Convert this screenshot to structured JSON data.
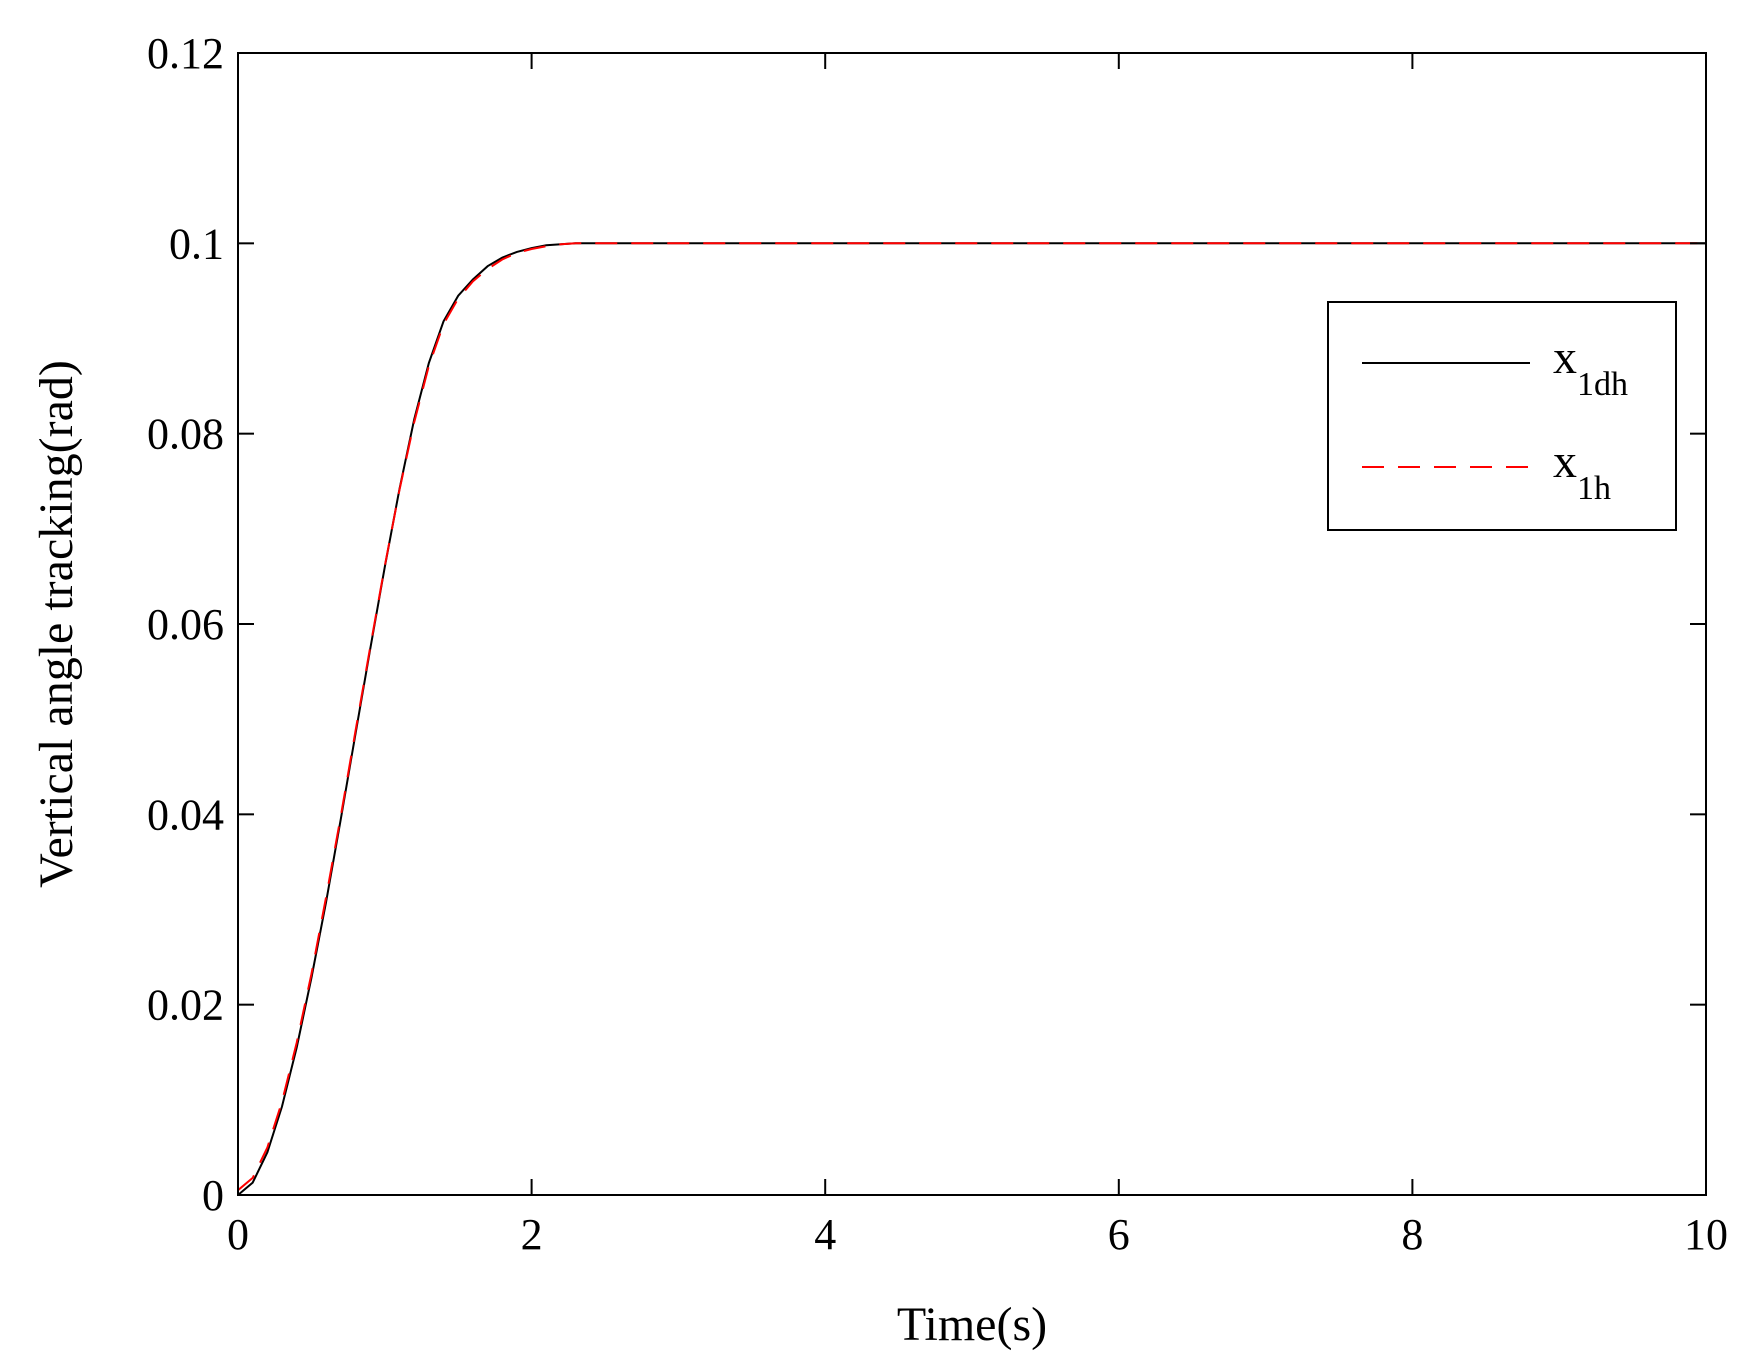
{
  "chart_data": {
    "type": "line",
    "title": "",
    "xlabel": "Time(s)",
    "ylabel": "Vertical angle tracking(rad)",
    "xlim": [
      0,
      10
    ],
    "ylim": [
      0,
      0.12
    ],
    "xticks": [
      "0",
      "2",
      "4",
      "6",
      "8",
      "10"
    ],
    "yticks": [
      "0",
      "0.02",
      "0.04",
      "0.06",
      "0.08",
      "0.1",
      "0.12"
    ],
    "grid": false,
    "legend_position": "top-right",
    "series": [
      {
        "name": "x",
        "name_sub": "1dh",
        "color": "#000000",
        "style": "solid",
        "x": [
          0,
          0.1,
          0.2,
          0.3,
          0.4,
          0.5,
          0.6,
          0.7,
          0.8,
          0.9,
          1.0,
          1.1,
          1.2,
          1.3,
          1.4,
          1.5,
          1.6,
          1.7,
          1.8,
          1.9,
          2.0,
          2.1,
          2.2,
          2.3,
          2.5,
          3,
          4,
          5,
          6,
          7,
          8,
          9,
          10
        ],
        "y": [
          0.0,
          0.0013,
          0.0045,
          0.0093,
          0.0155,
          0.0228,
          0.0308,
          0.0395,
          0.0484,
          0.0573,
          0.066,
          0.0742,
          0.0815,
          0.0874,
          0.0918,
          0.0945,
          0.0962,
          0.0976,
          0.0985,
          0.0991,
          0.0995,
          0.0998,
          0.0999,
          0.1,
          0.1,
          0.1,
          0.1,
          0.1,
          0.1,
          0.1,
          0.1,
          0.1,
          0.1
        ]
      },
      {
        "name": "x",
        "name_sub": "1h",
        "color": "#ff0000",
        "style": "dashed",
        "x": [
          0,
          0.1,
          0.2,
          0.3,
          0.4,
          0.5,
          0.6,
          0.7,
          0.8,
          0.9,
          1.0,
          1.1,
          1.2,
          1.3,
          1.4,
          1.5,
          1.6,
          1.7,
          1.8,
          1.9,
          2.0,
          2.1,
          2.2,
          2.3,
          2.5,
          3,
          4,
          5,
          6,
          7,
          8,
          9,
          10
        ],
        "y": [
          0.0005,
          0.0018,
          0.005,
          0.0098,
          0.016,
          0.0232,
          0.0313,
          0.0398,
          0.0487,
          0.0575,
          0.0661,
          0.0741,
          0.0812,
          0.0871,
          0.0915,
          0.0942,
          0.096,
          0.0973,
          0.0983,
          0.099,
          0.0994,
          0.0997,
          0.0999,
          0.1,
          0.1,
          0.1,
          0.1,
          0.1,
          0.1,
          0.1,
          0.1,
          0.1,
          0.1
        ]
      }
    ]
  }
}
